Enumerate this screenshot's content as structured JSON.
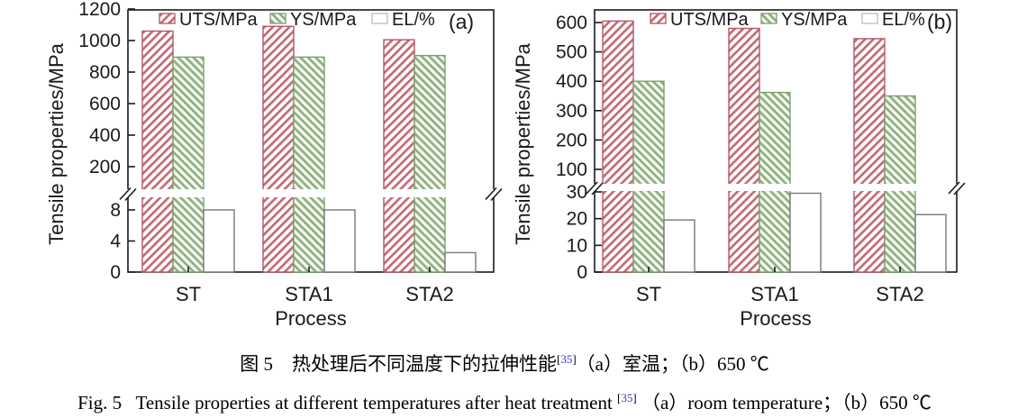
{
  "figure": {
    "caption_zh": {
      "prefix": "图 5　热处理后不同温度下的拉伸性能",
      "ref_open": "[",
      "ref_num": "35",
      "ref_close": "]",
      "suffix": "（a）室温；（b）650 ℃"
    },
    "caption_en": {
      "prefix": "Fig. 5   Tensile properties at different temperatures after heat treatment ",
      "ref_open": "[",
      "ref_num": "35",
      "ref_close": "]",
      "suffix": " （a）room temperature；（b）650 ℃"
    }
  },
  "colors": {
    "axis": "#1a1a1a",
    "uts_stripe": "#c36b76",
    "uts_border": "#b25763",
    "ys_stripe": "#8cad7d",
    "ys_bg": "#f3f7ef",
    "ys_border": "#7da06e",
    "el_border": "#787878",
    "el_legend_border": "#bcbcb0",
    "ref_blue": "#3333cc"
  },
  "chart_data": [
    {
      "type": "bar",
      "panel_label": "(a)",
      "condition": "room temperature",
      "xlabel": "Process",
      "ylabel": "Tensile properties/MPa",
      "categories": [
        "ST",
        "STA1",
        "STA2"
      ],
      "series": [
        {
          "name": "UTS/MPa",
          "axis": "top",
          "values": [
            1060,
            1090,
            1005
          ]
        },
        {
          "name": "YS/MPa",
          "axis": "top",
          "values": [
            895,
            895,
            905
          ]
        },
        {
          "name": "EL/%",
          "axis": "bottom",
          "values": [
            8,
            8,
            2.5
          ]
        }
      ],
      "top_axis": {
        "ticks": [
          1200,
          1000,
          800,
          600,
          400,
          200
        ],
        "range": [
          200,
          1200
        ]
      },
      "bottom_axis": {
        "ticks": [
          8,
          4,
          0
        ],
        "range": [
          0,
          10
        ]
      },
      "broken_axis": true,
      "legend_position": "top-inside",
      "grid": false
    },
    {
      "type": "bar",
      "panel_label": "(b)",
      "condition": "650 ℃",
      "xlabel": "Process",
      "ylabel": "Tensile properties/MPa",
      "categories": [
        "ST",
        "STA1",
        "STA2"
      ],
      "series": [
        {
          "name": "UTS/MPa",
          "axis": "top",
          "values": [
            605,
            580,
            545
          ]
        },
        {
          "name": "YS/MPa",
          "axis": "top",
          "values": [
            400,
            362,
            350
          ]
        },
        {
          "name": "EL/%",
          "axis": "bottom",
          "values": [
            19.5,
            29.5,
            21.5
          ]
        }
      ],
      "top_axis": {
        "ticks": [
          600,
          500,
          400,
          300,
          200,
          100
        ],
        "range": [
          100,
          600
        ]
      },
      "bottom_axis": {
        "ticks": [
          30,
          20,
          10,
          0
        ],
        "range": [
          0,
          30
        ]
      },
      "broken_axis": true,
      "legend_position": "top-inside",
      "grid": false
    }
  ]
}
